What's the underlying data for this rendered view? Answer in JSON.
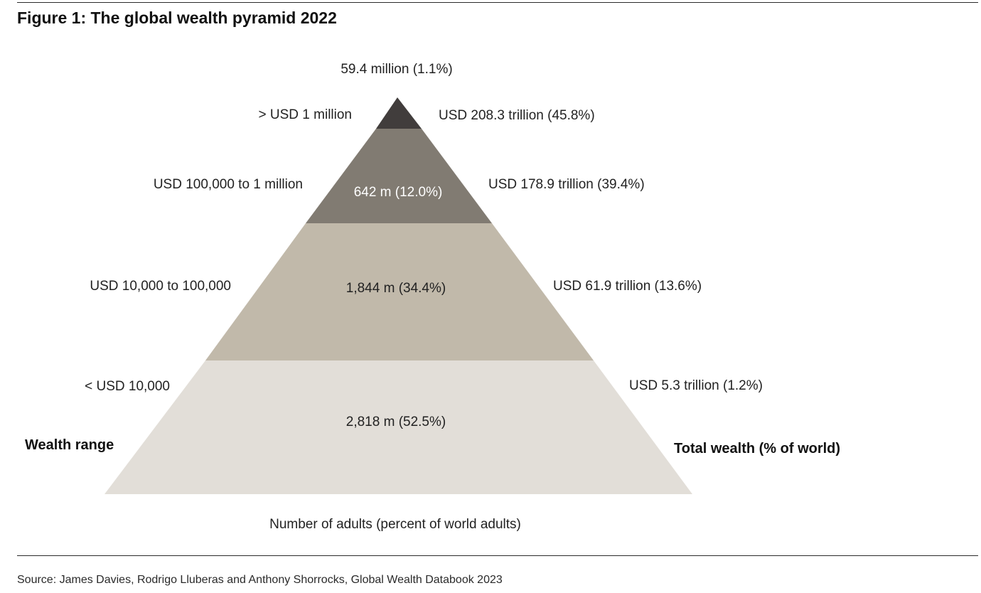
{
  "title": "Figure 1: The global wealth pyramid 2022",
  "tiers": [
    {
      "wealth_range": "> USD 1 million",
      "adults": "59.4 million (1.1%)",
      "total_wealth": "USD 208.3 trillion (45.8%)",
      "color": "#413d3c"
    },
    {
      "wealth_range": "USD 100,000  to 1 million",
      "adults": "642 m (12.0%)",
      "total_wealth": "USD 178.9 trillion (39.4%)",
      "color": "#817b72"
    },
    {
      "wealth_range": "USD 10,000  to 100,000",
      "adults": "1,844 m (34.4%)",
      "total_wealth": "USD 61.9 trillion (13.6%)",
      "color": "#c1b9aa"
    },
    {
      "wealth_range": "< USD 10,000",
      "adults": "2,818 m (52.5%)",
      "total_wealth": "USD 5.3 trillion (1.2%)",
      "color": "#e2ded8"
    }
  ],
  "left_axis_label": "Wealth range",
  "right_axis_label": "Total wealth (% of world)",
  "bottom_label": "Number of adults (percent of world adults)",
  "source": "Source: James Davies, Rodrigo Lluberas and Anthony Shorrocks, Global Wealth Databook 2023"
}
